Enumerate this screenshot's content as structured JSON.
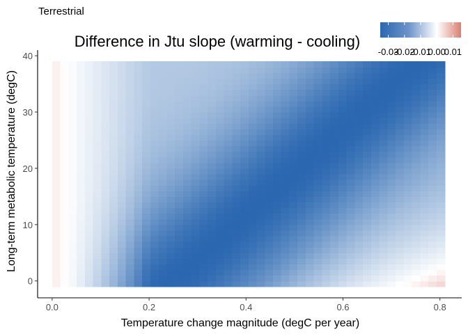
{
  "panel_label": "Terrestrial",
  "chart_data": {
    "type": "heatmap",
    "title": "Difference in Jtu slope (warming - cooling)",
    "xlabel": "Temperature change magnitude (degC per year)",
    "ylabel": "Long-term metabolic temperature (degC)",
    "x_range": [
      0,
      0.81
    ],
    "y_range": [
      -1,
      39
    ],
    "xlim": [
      -0.03,
      0.845
    ],
    "ylim": [
      -3,
      41
    ],
    "x_ticks": [
      0.0,
      0.2,
      0.4,
      0.6,
      0.8
    ],
    "x_tick_labels": [
      "0.0",
      "0.2",
      "0.4",
      "0.6",
      "0.8"
    ],
    "y_ticks": [
      0,
      10,
      20,
      30,
      40
    ],
    "y_tick_labels": [
      "0",
      "10",
      "20",
      "30",
      "40"
    ],
    "grid": false,
    "legend": {
      "position": "top-right",
      "min": -0.035,
      "max": 0.015,
      "breaks": [
        -0.03,
        -0.02,
        -0.01,
        0.0,
        0.01
      ],
      "labels": [
        "-0.03",
        "-0.02",
        "-0.01",
        "0.00",
        "0.01"
      ],
      "low_color": "#2a67b0",
      "mid_color": "#ffffff",
      "high_color": "#db7f72"
    },
    "surface": {
      "description_values_at": [
        {
          "x": 0.0,
          "y": 0,
          "value": 0.002
        },
        {
          "x": 0.05,
          "y": 20,
          "value": 0.0
        },
        {
          "x": 0.3,
          "y": 0,
          "value": -0.034
        },
        {
          "x": 0.4,
          "y": 15,
          "value": -0.033
        },
        {
          "x": 0.8,
          "y": 30,
          "value": -0.03
        },
        {
          "x": 0.8,
          "y": 0,
          "value": 0.011
        },
        {
          "x": 0.6,
          "y": 40,
          "value": -0.012
        }
      ]
    }
  }
}
